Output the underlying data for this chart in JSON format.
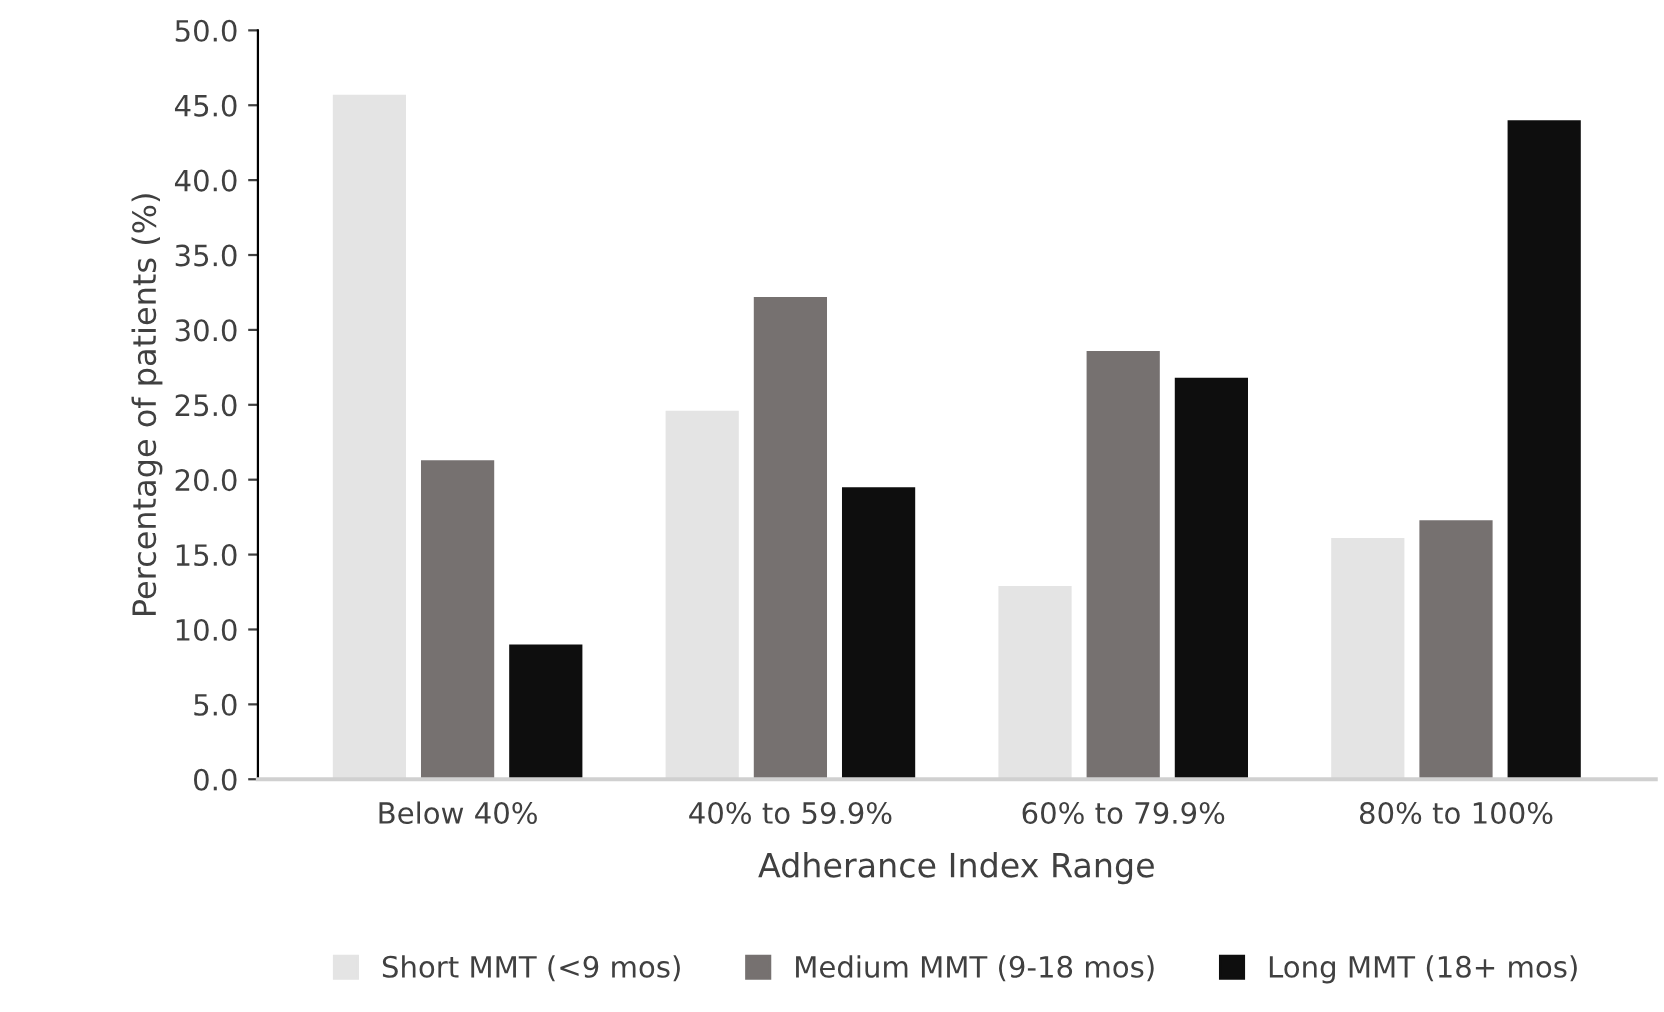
{
  "chart_data": {
    "type": "bar",
    "xlabel": "Adherance Index Range",
    "ylabel": "Percentage of patients (%)",
    "categories": [
      "Below 40%",
      "40% to 59.9%",
      "60% to 79.9%",
      "80% to 100%"
    ],
    "series": [
      {
        "name": "Short MMT (<9 mos)",
        "color": "#e4e4e4",
        "values": [
          45.7,
          24.6,
          12.9,
          16.1
        ]
      },
      {
        "name": "Medium MMT (9-18 mos)",
        "color": "#767170",
        "values": [
          21.3,
          32.2,
          28.6,
          17.3
        ]
      },
      {
        "name": "Long MMT (18+ mos)",
        "color": "#0e0e0e",
        "values": [
          9.0,
          19.5,
          26.8,
          44.0
        ]
      }
    ],
    "ylim": [
      0,
      50
    ],
    "yticks": [
      {
        "value": 0,
        "label": "0.0"
      },
      {
        "value": 5,
        "label": "5.0"
      },
      {
        "value": 10,
        "label": "10.0"
      },
      {
        "value": 15,
        "label": "15.0"
      },
      {
        "value": 20,
        "label": "20.0"
      },
      {
        "value": 25,
        "label": "25.0"
      },
      {
        "value": 30,
        "label": "30.0"
      },
      {
        "value": 35,
        "label": "35.0"
      },
      {
        "value": 40,
        "label": "40.0"
      },
      {
        "value": 45,
        "label": "45.0"
      },
      {
        "value": 50,
        "label": "50.0"
      }
    ],
    "legend": "bottom"
  }
}
